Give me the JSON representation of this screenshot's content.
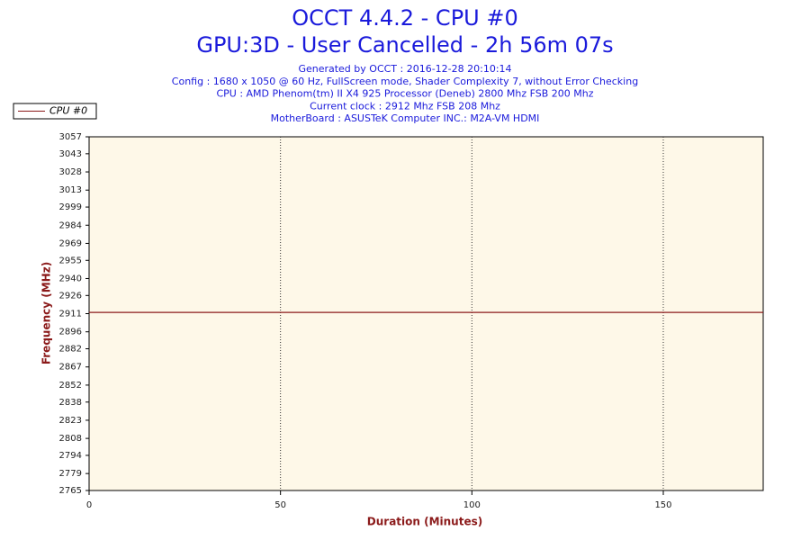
{
  "chart_data": {
    "type": "line",
    "title": "OCCT 4.4.2 - CPU #0",
    "subtitle": "GPU:3D - User Cancelled - 2h 56m 07s",
    "info": [
      "Generated by OCCT : 2016-12-28 20:10:14",
      "Config : 1680 x 1050 @ 60 Hz, FullScreen mode, Shader Complexity 7, without Error Checking",
      "CPU : AMD Phenom(tm) II X4 925 Processor (Deneb) 2800 Mhz FSB 200 Mhz",
      "Current clock : 2912 Mhz FSB 208 Mhz",
      "MotherBoard : ASUSTeK Computer INC.: M2A-VM HDMI"
    ],
    "x_label": "Duration (Minutes)",
    "y_label": "Frequency (MHz)",
    "x": [
      0,
      176.1
    ],
    "series": [
      {
        "name": "CPU #0",
        "color": "#8b1a1a",
        "values": [
          2912,
          2912
        ]
      }
    ],
    "xlim": [
      0,
      176.1
    ],
    "xticks": [
      0,
      50,
      100,
      150
    ],
    "ylim": [
      2765,
      3057
    ],
    "yticks": [
      2765,
      2779,
      2794,
      2808,
      2823,
      2838,
      2852,
      2867,
      2882,
      2896,
      2911,
      2926,
      2940,
      2955,
      2969,
      2984,
      2999,
      3013,
      3028,
      3043,
      3057
    ],
    "grid": "x",
    "legend": "top-left"
  }
}
